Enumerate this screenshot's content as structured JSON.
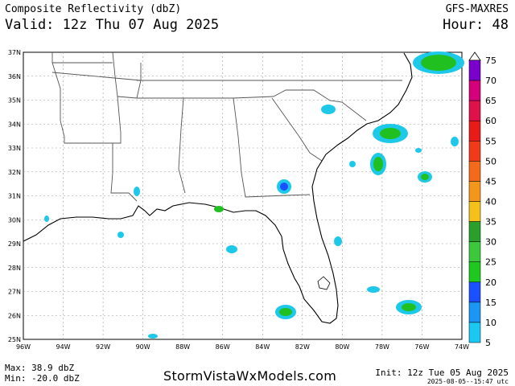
{
  "header": {
    "title": "Composite Reflectivity (dbZ)",
    "valid": "Valid: 12z Thu 07 Aug 2025",
    "model": "GFS-MAXRES",
    "hour": "Hour: 48"
  },
  "footer": {
    "max": "Max: 38.9 dbZ",
    "min": "Min: -20.0 dbZ",
    "site": "StormVistaWxModels.com",
    "init": "Init: 12z Tue 05 Aug 2025",
    "stamp": "2025-08-05--15:47 utc"
  },
  "map": {
    "lat_labels": [
      "37N",
      "36N",
      "35N",
      "34N",
      "33N",
      "32N",
      "31N",
      "30N",
      "29N",
      "28N",
      "27N",
      "26N",
      "25N"
    ],
    "lon_labels": [
      "96W",
      "94W",
      "92W",
      "90W",
      "88W",
      "86W",
      "84W",
      "82W",
      "80W",
      "78W",
      "76W",
      "74W"
    ],
    "lat_range": [
      25,
      37
    ],
    "lon_range": [
      -96,
      -74
    ],
    "grid": true
  },
  "colorbar": {
    "levels": [
      "75",
      "70",
      "65",
      "60",
      "55",
      "50",
      "45",
      "40",
      "35",
      "30",
      "25",
      "20",
      "15",
      "10",
      "5"
    ],
    "colors": [
      "#7a00cc",
      "#d4007a",
      "#e0104a",
      "#e81a1a",
      "#f03a1a",
      "#f46a1a",
      "#f4961a",
      "#f4c01a",
      "#2aa02a",
      "#3cc83c",
      "#1ec81e",
      "#1a50ff",
      "#1a96f4",
      "#1ac8f4",
      "#00c8c8"
    ]
  },
  "echo_colors": {
    "light": "#1ec8e8",
    "moderate": "#20c020",
    "heavy": "#2aa82a",
    "core": "#1a50ff"
  }
}
